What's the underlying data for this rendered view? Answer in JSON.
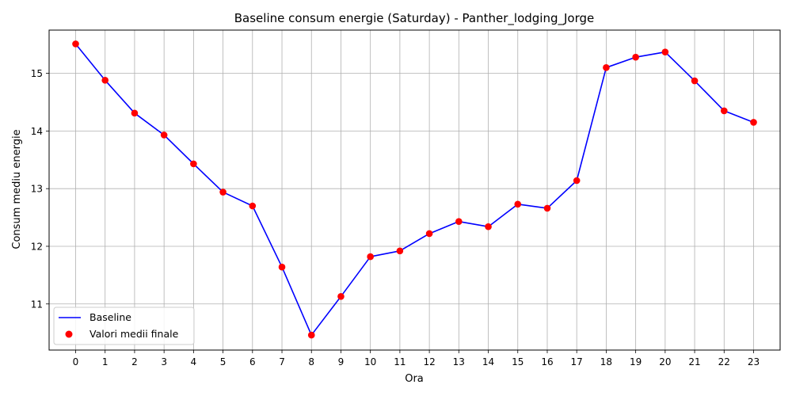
{
  "chart_data": {
    "type": "line",
    "title": "Baseline consum energie (Saturday) - Panther_lodging_Jorge",
    "xlabel": "Ora",
    "ylabel": "Consum mediu energie",
    "x": [
      0,
      1,
      2,
      3,
      4,
      5,
      6,
      7,
      8,
      9,
      10,
      11,
      12,
      13,
      14,
      15,
      16,
      17,
      18,
      19,
      20,
      21,
      22,
      23
    ],
    "xticks": [
      "0",
      "1",
      "2",
      "3",
      "4",
      "5",
      "6",
      "7",
      "8",
      "9",
      "10",
      "11",
      "12",
      "13",
      "14",
      "15",
      "16",
      "17",
      "18",
      "19",
      "20",
      "21",
      "22",
      "23"
    ],
    "yticks": [
      "11",
      "12",
      "13",
      "14",
      "15"
    ],
    "xlim": [
      -0.9,
      23.9
    ],
    "ylim": [
      10.2,
      15.75
    ],
    "series": [
      {
        "name": "Baseline",
        "kind": "line",
        "color": "#0000ff",
        "values": [
          15.51,
          14.88,
          14.31,
          13.93,
          13.43,
          12.94,
          12.7,
          11.64,
          10.46,
          11.13,
          11.82,
          11.92,
          12.22,
          12.43,
          12.34,
          12.73,
          12.66,
          13.14,
          15.1,
          15.28,
          15.37,
          14.87,
          14.35,
          14.15
        ]
      },
      {
        "name": "Valori medii finale",
        "kind": "scatter",
        "color": "#ff0000",
        "values": [
          15.51,
          14.88,
          14.31,
          13.93,
          13.43,
          12.94,
          12.7,
          11.64,
          10.46,
          11.13,
          11.82,
          11.92,
          12.22,
          12.43,
          12.34,
          12.73,
          12.66,
          13.14,
          15.1,
          15.28,
          15.37,
          14.87,
          14.35,
          14.15
        ]
      }
    ],
    "grid": true,
    "legend_position": "lower-left"
  }
}
